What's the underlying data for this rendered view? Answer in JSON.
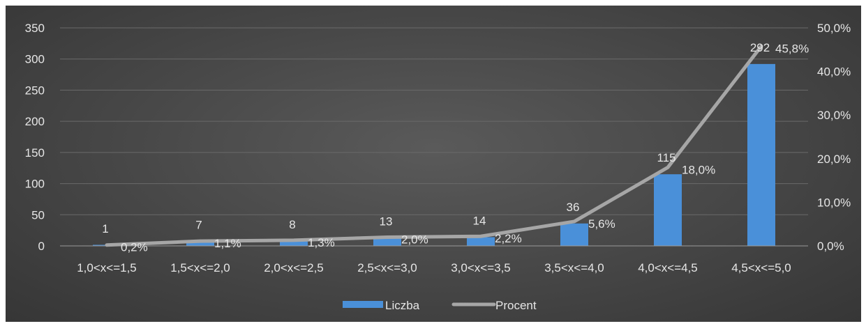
{
  "chart_data": {
    "type": "bar",
    "categories": [
      "1,0<x<=1,5",
      "1,5<x<=2,0",
      "2,0<x<=2,5",
      "2,5<x<=3,0",
      "3,0<x<=3,5",
      "3,5<x<=4,0",
      "4,0<x<=4,5",
      "4,5<x<=5,0"
    ],
    "series": [
      {
        "name": "Liczba",
        "type": "bar",
        "axis": "left",
        "values": [
          1,
          7,
          8,
          13,
          14,
          36,
          115,
          292
        ],
        "labels": [
          "1",
          "7",
          "8",
          "13",
          "14",
          "36",
          "115",
          "292"
        ],
        "color": "#4a90d9"
      },
      {
        "name": "Procent",
        "type": "line",
        "axis": "right",
        "values": [
          0.2,
          1.1,
          1.3,
          2.0,
          2.2,
          5.6,
          18.0,
          45.8
        ],
        "labels": [
          "0,2%",
          "1,1%",
          "1,3%",
          "2,0%",
          "2,2%",
          "5,6%",
          "18,0%",
          "45,8%"
        ],
        "color": "#a6a6a6"
      }
    ],
    "ylim": [
      0,
      350
    ],
    "yticks": [
      "0",
      "50",
      "100",
      "150",
      "200",
      "250",
      "300",
      "350"
    ],
    "y2lim": [
      0,
      50
    ],
    "y2ticks": [
      "0,0%",
      "10,0%",
      "20,0%",
      "30,0%",
      "40,0%",
      "50,0%"
    ],
    "grid": true,
    "legend": "bottom"
  }
}
